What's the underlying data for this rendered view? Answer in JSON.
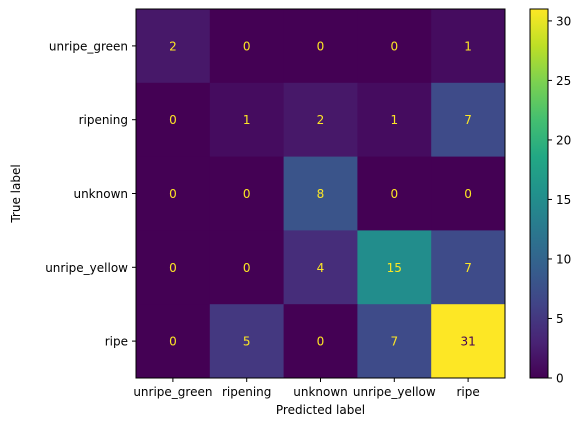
{
  "chart_data": {
    "type": "heatmap",
    "title": "",
    "xlabel": "Predicted label",
    "ylabel": "True label",
    "x_categories": [
      "unripe_green",
      "ripening",
      "unknown",
      "unripe_yellow",
      "ripe"
    ],
    "y_categories": [
      "unripe_green",
      "ripening",
      "unknown",
      "unripe_yellow",
      "ripe"
    ],
    "values": [
      [
        2,
        0,
        0,
        0,
        1
      ],
      [
        0,
        1,
        2,
        1,
        7
      ],
      [
        0,
        0,
        8,
        0,
        0
      ],
      [
        0,
        0,
        4,
        15,
        7
      ],
      [
        0,
        5,
        0,
        7,
        31
      ]
    ],
    "colormap": "viridis",
    "vmin": 0,
    "vmax": 31,
    "colorbar_ticks": [
      0,
      5,
      10,
      15,
      20,
      25,
      30
    ],
    "text_color_dark_cells": "#fde725",
    "text_color_light_cells": "#440154"
  }
}
